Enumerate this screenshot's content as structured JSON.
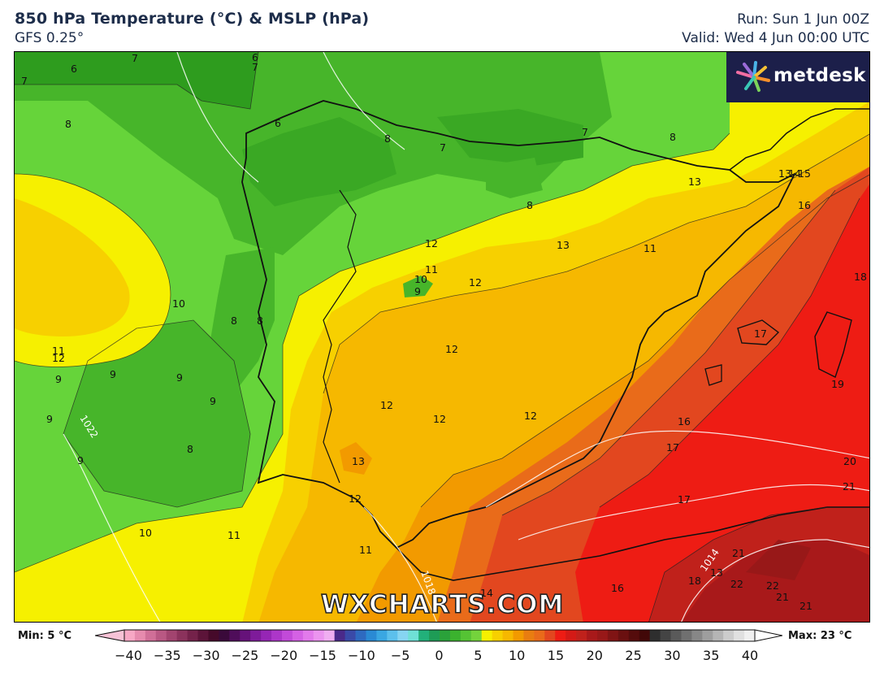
{
  "header": {
    "title": "850 hPa Temperature (°C) & MSLP (hPa)",
    "model": "GFS 0.25°",
    "run": "Run: Sun 1 Jun 00Z",
    "valid": "Valid: Wed 4 Jun 00:00 UTC"
  },
  "brand": {
    "name": "metdesk",
    "icon": "starburst-logo-icon"
  },
  "watermark": "WXCHARTS.COM",
  "legend": {
    "min_label": "Min: 5 °C",
    "max_label": "Max: 23 °C",
    "ticks": [
      "−40",
      "−35",
      "−30",
      "−25",
      "−20",
      "−15",
      "−10",
      "−5",
      "0",
      "5",
      "10",
      "15",
      "20",
      "25",
      "30",
      "35",
      "40"
    ]
  },
  "contour_labels": [
    {
      "t": "6"
    },
    {
      "t": "7"
    },
    {
      "t": "6"
    },
    {
      "t": "7"
    },
    {
      "t": "7"
    },
    {
      "t": "8"
    },
    {
      "t": "6"
    },
    {
      "t": "8"
    },
    {
      "t": "7"
    },
    {
      "t": "7"
    },
    {
      "t": "8"
    },
    {
      "t": "13"
    },
    {
      "t": "13"
    },
    {
      "t": "14"
    },
    {
      "t": "15"
    },
    {
      "t": "16"
    },
    {
      "t": "8"
    },
    {
      "t": "12"
    },
    {
      "t": "13"
    },
    {
      "t": "11"
    },
    {
      "t": "11"
    },
    {
      "t": "10"
    },
    {
      "t": "9"
    },
    {
      "t": "12"
    },
    {
      "t": "18"
    },
    {
      "t": "10"
    },
    {
      "t": "8"
    },
    {
      "t": "8"
    },
    {
      "t": "12"
    },
    {
      "t": "11"
    },
    {
      "t": "12"
    },
    {
      "t": "17"
    },
    {
      "t": "9"
    },
    {
      "t": "9"
    },
    {
      "t": "9"
    },
    {
      "t": "19"
    },
    {
      "t": "12"
    },
    {
      "t": "9"
    },
    {
      "t": "12"
    },
    {
      "t": "12"
    },
    {
      "t": "16"
    },
    {
      "t": "8"
    },
    {
      "t": "17"
    },
    {
      "t": "9"
    },
    {
      "t": "13"
    },
    {
      "t": "20"
    },
    {
      "t": "9"
    },
    {
      "t": "12"
    },
    {
      "t": "17"
    },
    {
      "t": "21"
    },
    {
      "t": "10"
    },
    {
      "t": "11"
    },
    {
      "t": "11"
    },
    {
      "t": "21"
    },
    {
      "t": "18"
    },
    {
      "t": "13"
    },
    {
      "t": "22"
    },
    {
      "t": "22"
    },
    {
      "t": "16"
    },
    {
      "t": "14"
    },
    {
      "t": "21"
    },
    {
      "t": "21"
    }
  ],
  "isobar_labels": [
    "1022",
    "1018",
    "1014"
  ],
  "colors": {
    "green_dark": "#2e9c1e",
    "green": "#47b52a",
    "green_light": "#66d43a",
    "yellow": "#f6f000",
    "yellow_orange": "#f7d000",
    "orange_light": "#f6b800",
    "orange": "#f29a00",
    "orange_red": "#e96b1a",
    "red_orange": "#e2471f",
    "red": "#ee1c14",
    "dark_red": "#c0211b",
    "deep_red": "#981818",
    "brand_bg": "#1c1f4a"
  }
}
